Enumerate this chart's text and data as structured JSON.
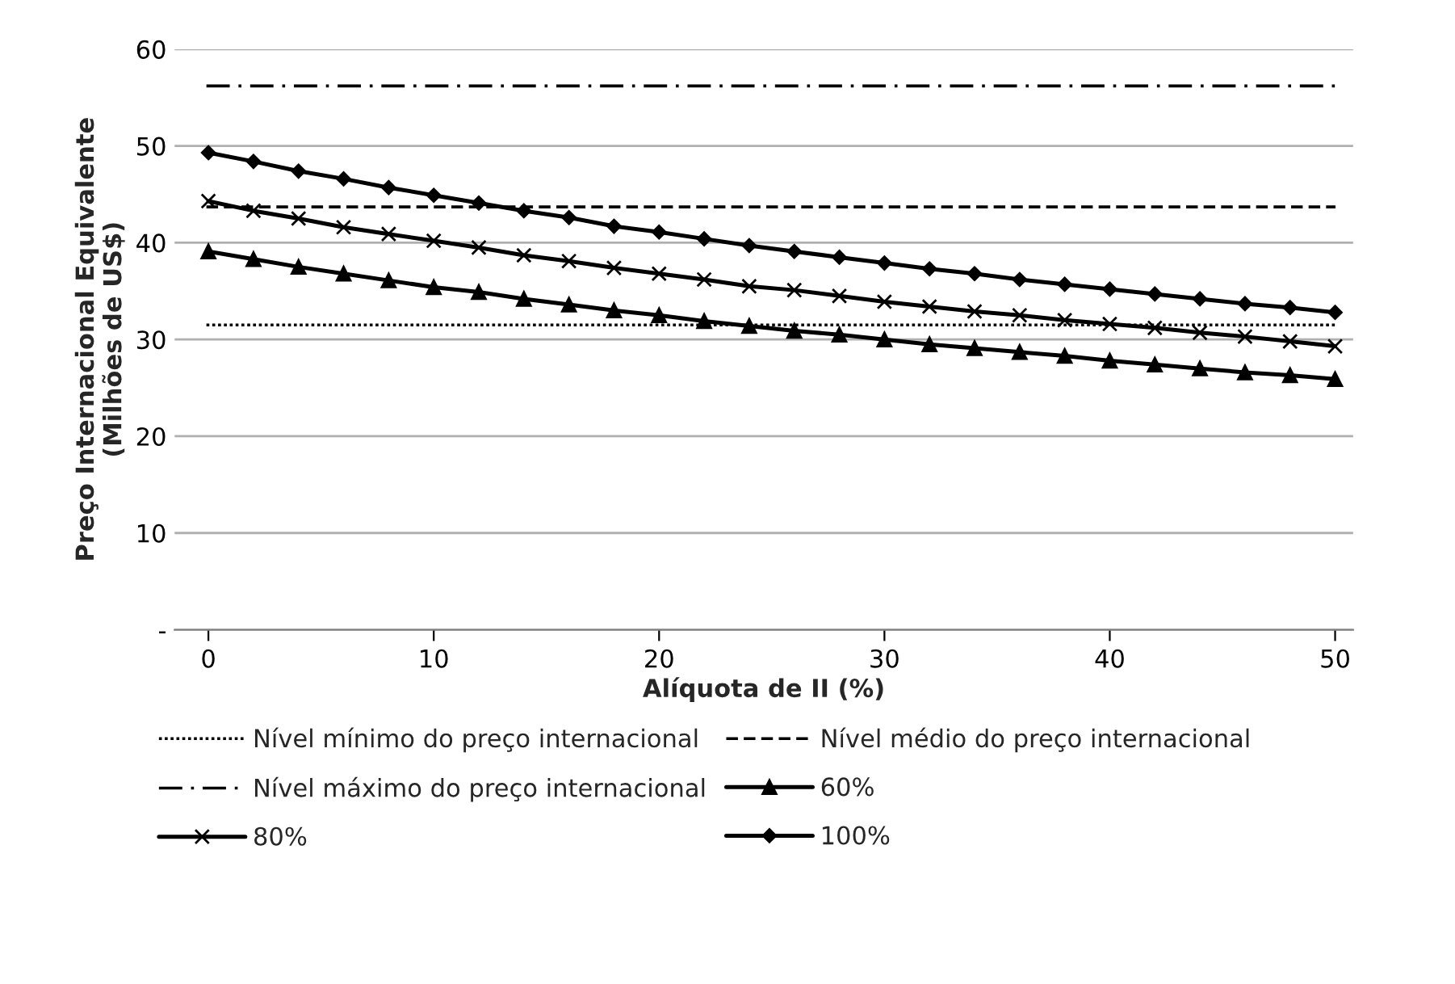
{
  "chart_data": {
    "type": "line",
    "xlabel": "Alíquota de II (%)",
    "ylabel": "Preço Internacional Equivalente\n(Milhões de US$)",
    "x": [
      0,
      2,
      4,
      6,
      8,
      10,
      12,
      14,
      16,
      18,
      20,
      22,
      24,
      26,
      28,
      30,
      32,
      34,
      36,
      38,
      40,
      42,
      44,
      46,
      48,
      50
    ],
    "series": [
      {
        "name": "60%",
        "color": "#000000",
        "marker": "triangle",
        "values": [
          39.1,
          38.3,
          37.5,
          36.8,
          36.1,
          35.4,
          34.9,
          34.2,
          33.6,
          33.0,
          32.5,
          31.9,
          31.4,
          30.9,
          30.5,
          30.0,
          29.5,
          29.1,
          28.7,
          28.3,
          27.8,
          27.4,
          27.0,
          26.6,
          26.3,
          25.9
        ]
      },
      {
        "name": "80%",
        "color": "#000000",
        "marker": "cross",
        "values": [
          44.3,
          43.3,
          42.5,
          41.6,
          40.9,
          40.2,
          39.5,
          38.7,
          38.1,
          37.4,
          36.8,
          36.2,
          35.5,
          35.1,
          34.5,
          33.9,
          33.4,
          32.9,
          32.5,
          32.0,
          31.6,
          31.2,
          30.7,
          30.3,
          29.8,
          29.3
        ]
      },
      {
        "name": "100%",
        "color": "#000000",
        "marker": "diamond",
        "values": [
          49.3,
          48.4,
          47.4,
          46.6,
          45.7,
          44.9,
          44.1,
          43.3,
          42.6,
          41.7,
          41.1,
          40.4,
          39.7,
          39.1,
          38.5,
          37.9,
          37.3,
          36.8,
          36.2,
          35.7,
          35.2,
          34.7,
          34.2,
          33.7,
          33.3,
          32.8
        ]
      }
    ],
    "ref_lines": [
      {
        "axis": "y",
        "value": 31.5,
        "label": "Nível mínimo do preço internacional",
        "line_style": "dotted",
        "color": "#000000"
      },
      {
        "axis": "y",
        "value": 43.7,
        "label": "Nível médio do preço internacional",
        "line_style": "dashed",
        "color": "#000000"
      },
      {
        "axis": "y",
        "value": 56.2,
        "label": "Nível máximo do preço internacional",
        "line_style": "dashdot",
        "color": "#000000"
      }
    ],
    "xlim": [
      -1.5,
      50.8
    ],
    "xticks": [
      0,
      10,
      20,
      30,
      40,
      50
    ],
    "ylim": [
      0,
      60
    ],
    "yticks": [
      {
        "value": 0,
        "label": "-"
      },
      10,
      20,
      30,
      40,
      50,
      60
    ],
    "grid": "y",
    "legend": "bottom",
    "line_style": "solid"
  }
}
